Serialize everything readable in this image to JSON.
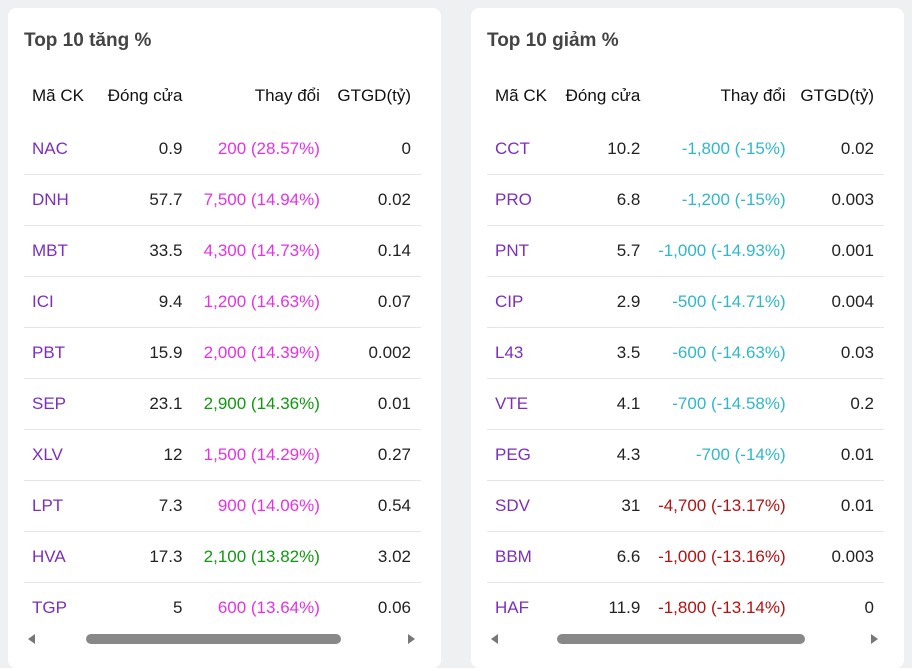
{
  "colors": {
    "symbol": "#7b2fbe",
    "ceiling": "#e532e5",
    "up": "#109910",
    "floor": "#2fb8c8",
    "down": "#b31212"
  },
  "gainers": {
    "title": "Top 10 tăng %",
    "headers": [
      "Mã CK",
      "Đóng cửa",
      "Thay đổi",
      "GTGD(tỷ)"
    ],
    "rows": [
      {
        "symbol": "NAC",
        "close": "0.9",
        "change": "200 (28.57%)",
        "value": "0",
        "color": "#e532e5"
      },
      {
        "symbol": "DNH",
        "close": "57.7",
        "change": "7,500 (14.94%)",
        "value": "0.02",
        "color": "#e532e5"
      },
      {
        "symbol": "MBT",
        "close": "33.5",
        "change": "4,300 (14.73%)",
        "value": "0.14",
        "color": "#e532e5"
      },
      {
        "symbol": "ICI",
        "close": "9.4",
        "change": "1,200 (14.63%)",
        "value": "0.07",
        "color": "#e532e5"
      },
      {
        "symbol": "PBT",
        "close": "15.9",
        "change": "2,000 (14.39%)",
        "value": "0.002",
        "color": "#e532e5"
      },
      {
        "symbol": "SEP",
        "close": "23.1",
        "change": "2,900 (14.36%)",
        "value": "0.01",
        "color": "#109910"
      },
      {
        "symbol": "XLV",
        "close": "12",
        "change": "1,500 (14.29%)",
        "value": "0.27",
        "color": "#e532e5"
      },
      {
        "symbol": "LPT",
        "close": "7.3",
        "change": "900 (14.06%)",
        "value": "0.54",
        "color": "#e532e5"
      },
      {
        "symbol": "HVA",
        "close": "17.3",
        "change": "2,100 (13.82%)",
        "value": "3.02",
        "color": "#109910"
      },
      {
        "symbol": "TGP",
        "close": "5",
        "change": "600 (13.64%)",
        "value": "0.06",
        "color": "#e532e5"
      }
    ]
  },
  "losers": {
    "title": "Top 10 giảm %",
    "headers": [
      "Mã CK",
      "Đóng cửa",
      "Thay đổi",
      "GTGD(tỷ)"
    ],
    "rows": [
      {
        "symbol": "CCT",
        "close": "10.2",
        "change": "-1,800 (-15%)",
        "value": "0.02",
        "color": "#2fb8c8"
      },
      {
        "symbol": "PRO",
        "close": "6.8",
        "change": "-1,200 (-15%)",
        "value": "0.003",
        "color": "#2fb8c8"
      },
      {
        "symbol": "PNT",
        "close": "5.7",
        "change": "-1,000 (-14.93%)",
        "value": "0.001",
        "color": "#2fb8c8"
      },
      {
        "symbol": "CIP",
        "close": "2.9",
        "change": "-500 (-14.71%)",
        "value": "0.004",
        "color": "#2fb8c8"
      },
      {
        "symbol": "L43",
        "close": "3.5",
        "change": "-600 (-14.63%)",
        "value": "0.03",
        "color": "#2fb8c8"
      },
      {
        "symbol": "VTE",
        "close": "4.1",
        "change": "-700 (-14.58%)",
        "value": "0.2",
        "color": "#2fb8c8"
      },
      {
        "symbol": "PEG",
        "close": "4.3",
        "change": "-700 (-14%)",
        "value": "0.01",
        "color": "#2fb8c8"
      },
      {
        "symbol": "SDV",
        "close": "31",
        "change": "-4,700 (-13.17%)",
        "value": "0.01",
        "color": "#b31212"
      },
      {
        "symbol": "BBM",
        "close": "6.6",
        "change": "-1,000 (-13.16%)",
        "value": "0.003",
        "color": "#b31212"
      },
      {
        "symbol": "HAF",
        "close": "11.9",
        "change": "-1,800 (-13.14%)",
        "value": "0",
        "color": "#b31212"
      }
    ]
  }
}
